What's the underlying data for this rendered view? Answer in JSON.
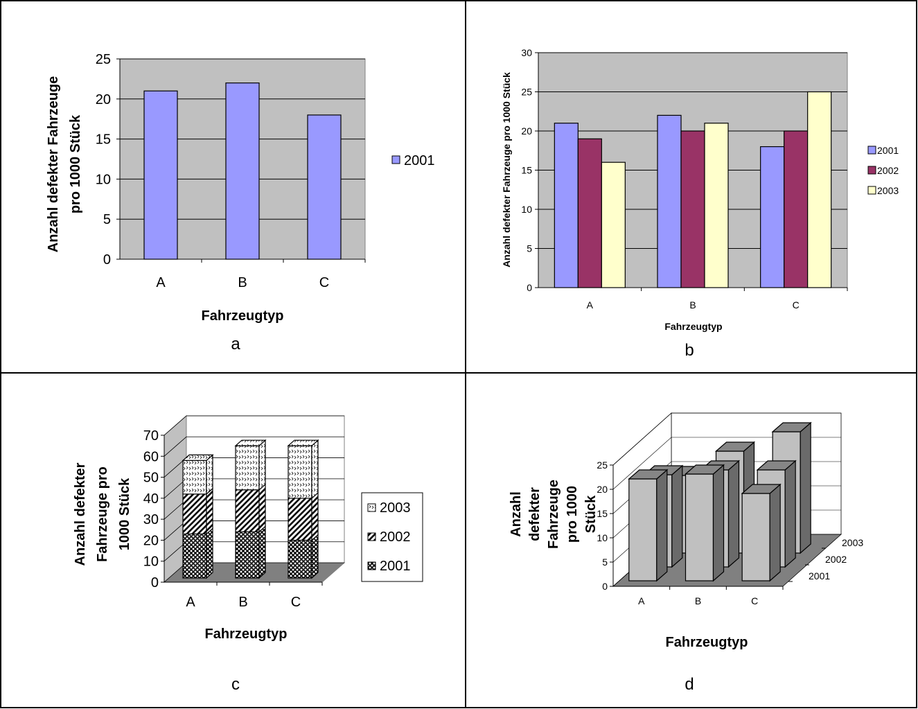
{
  "chart_data": [
    {
      "panel": "a",
      "type": "bar",
      "categories": [
        "A",
        "B",
        "C"
      ],
      "series": [
        {
          "name": "2001",
          "values": [
            21,
            22,
            18
          ],
          "color": "#9999ff"
        }
      ],
      "xlabel": "Fahrzeugtyp",
      "ylabel": [
        "Anzahl defekter Fahrzeuge",
        "pro 1000 Stück"
      ],
      "yticks": [
        "0",
        "5",
        "10",
        "15",
        "20",
        "25"
      ],
      "ylim": [
        0,
        25
      ],
      "grid": true,
      "legend": "right",
      "plot_background": "#c0c0c0",
      "caption": "a"
    },
    {
      "panel": "b",
      "type": "bar",
      "categories": [
        "A",
        "B",
        "C"
      ],
      "series": [
        {
          "name": "2001",
          "values": [
            21,
            22,
            18
          ],
          "color": "#9999ff"
        },
        {
          "name": "2002",
          "values": [
            19,
            20,
            20
          ],
          "color": "#993366"
        },
        {
          "name": "2003",
          "values": [
            16,
            21,
            25
          ],
          "color": "#ffffcc"
        }
      ],
      "xlabel": "Fahrzeugtyp",
      "ylabel": [
        "Anzahl defekter Fahrzeuge pro 1000 Stück"
      ],
      "yticks": [
        "0",
        "5",
        "10",
        "15",
        "20",
        "25",
        "30"
      ],
      "ylim": [
        0,
        30
      ],
      "grid": true,
      "legend": "right",
      "plot_background": "#c0c0c0",
      "caption": "b"
    },
    {
      "panel": "c",
      "type": "bar",
      "stacked": true,
      "three_d": true,
      "categories": [
        "A",
        "B",
        "C"
      ],
      "series": [
        {
          "name": "2001",
          "values": [
            21,
            22,
            18
          ],
          "pattern": "crosshatch"
        },
        {
          "name": "2002",
          "values": [
            19,
            20,
            20
          ],
          "pattern": "diagonal"
        },
        {
          "name": "2003",
          "values": [
            16,
            21,
            25
          ],
          "pattern": "dots"
        }
      ],
      "xlabel": "Fahrzeugtyp",
      "ylabel": [
        "Anzahl defekter",
        "Fahrzeuge pro",
        "1000 Stück"
      ],
      "yticks": [
        "0",
        "10",
        "20",
        "30",
        "40",
        "50",
        "60",
        "70"
      ],
      "ylim": [
        0,
        70
      ],
      "grid": true,
      "legend": "right",
      "caption": "c"
    },
    {
      "panel": "d",
      "type": "bar",
      "three_d": true,
      "categories": [
        "A",
        "B",
        "C"
      ],
      "series": [
        {
          "name": "2001",
          "values": [
            21,
            22,
            18
          ]
        },
        {
          "name": "2002",
          "values": [
            19,
            20,
            20
          ]
        },
        {
          "name": "2003",
          "values": [
            16,
            21,
            25
          ]
        }
      ],
      "xlabel": "Fahrzeugtyp",
      "ylabel": [
        "Anzahl",
        "defekter",
        "Fahrzeuge",
        "pro 1000",
        "Stück"
      ],
      "yticks": [
        "0",
        "5",
        "10",
        "15",
        "20",
        "25"
      ],
      "ylim": [
        0,
        25
      ],
      "grid": true,
      "legend": "none",
      "caption": "d"
    }
  ]
}
